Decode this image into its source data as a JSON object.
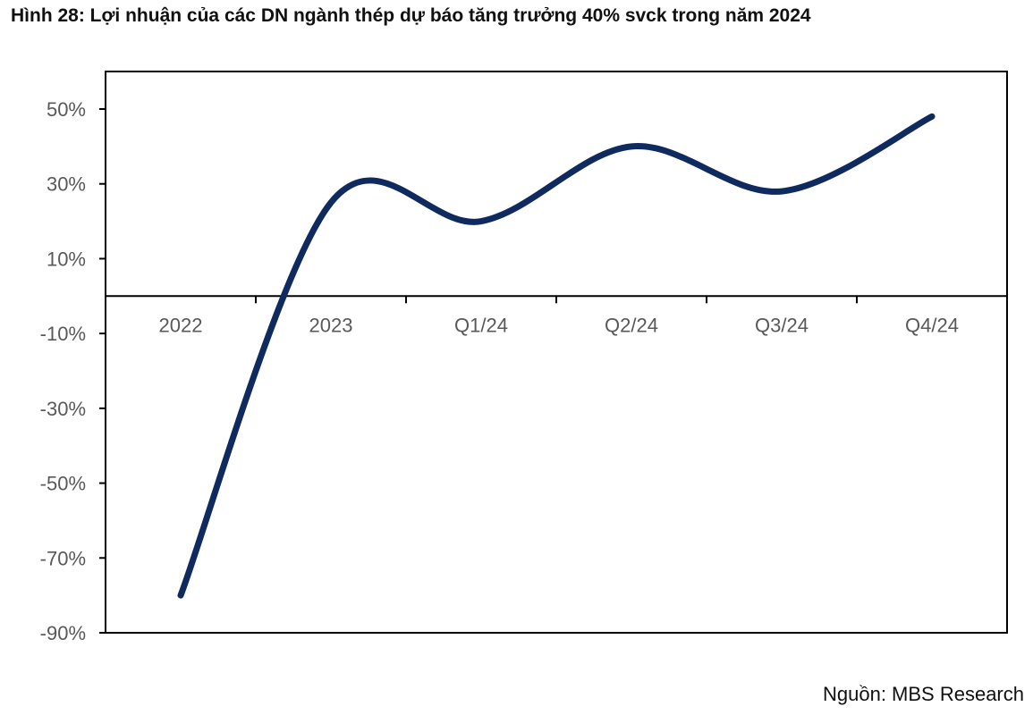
{
  "figure": {
    "title": "Hình 28: Lợi nhuận của các DN ngành thép dự báo tăng trưởng 40% svck trong năm 2024",
    "source": "Nguồn: MBS Research"
  },
  "chart_data": {
    "type": "line",
    "title": "",
    "xlabel": "",
    "ylabel": "",
    "categories": [
      "2022",
      "2023",
      "Q1/24",
      "Q2/24",
      "Q3/24",
      "Q4/24"
    ],
    "series": [
      {
        "values": [
          -80,
          25,
          20,
          40,
          28,
          48
        ],
        "color": "#0f2a5f"
      }
    ],
    "ylim": [
      -90,
      60
    ],
    "y_ticks": [
      -90,
      -70,
      -50,
      -30,
      -10,
      10,
      30,
      50
    ],
    "y_tick_labels": [
      "-90%",
      "-70%",
      "-50%",
      "-30%",
      "-10%",
      "10%",
      "30%",
      "50%"
    ],
    "smooth": true,
    "grid": false,
    "legend": "none"
  }
}
